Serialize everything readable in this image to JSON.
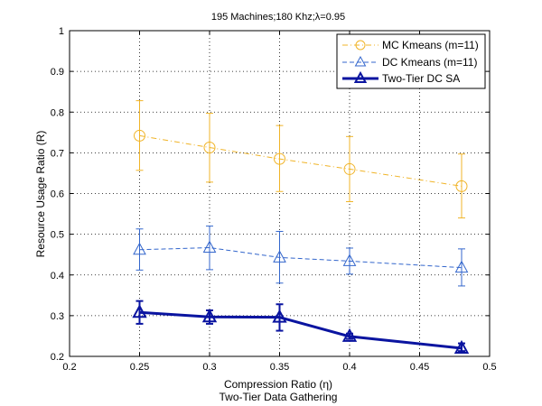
{
  "chart_data": {
    "type": "line",
    "title": "195 Machines;180 Khz;λ=0.95",
    "xlabel": "Compression Ratio (η)",
    "xlabel2": "Two-Tier Data Gathering",
    "ylabel": "Resource Usage Ratio (R)",
    "xlim": [
      0.2,
      0.5
    ],
    "ylim": [
      0.2,
      1.0
    ],
    "xticks": [
      0.2,
      0.25,
      0.3,
      0.35,
      0.4,
      0.45,
      0.5
    ],
    "xtick_labels": [
      "0.2",
      "0.25",
      "0.3",
      "0.35",
      "0.4",
      "0.45",
      "0.5"
    ],
    "yticks": [
      0.2,
      0.3,
      0.4,
      0.5,
      0.6,
      0.7,
      0.8,
      0.9,
      1.0
    ],
    "ytick_labels": [
      "0.2",
      "0.3",
      "0.4",
      "0.5",
      "0.6",
      "0.7",
      "0.8",
      "0.9",
      "1"
    ],
    "grid": true,
    "legend_position": "top-right",
    "series": [
      {
        "name": "MC Kmeans (m=11)",
        "color": "#f0b428",
        "line_style": "dash-dot",
        "marker": "circle",
        "x": [
          0.25,
          0.3,
          0.35,
          0.4,
          0.48
        ],
        "y": [
          0.742,
          0.713,
          0.685,
          0.66,
          0.618
        ],
        "err_low": [
          0.657,
          0.628,
          0.605,
          0.58,
          0.54
        ],
        "err_high": [
          0.828,
          0.797,
          0.767,
          0.74,
          0.697
        ]
      },
      {
        "name": "DC Kmeans (m=11)",
        "color": "#3366cc",
        "line_style": "dashed",
        "marker": "triangle",
        "x": [
          0.25,
          0.3,
          0.35,
          0.4,
          0.48
        ],
        "y": [
          0.462,
          0.467,
          0.443,
          0.434,
          0.418
        ],
        "err_low": [
          0.412,
          0.413,
          0.38,
          0.402,
          0.373
        ],
        "err_high": [
          0.513,
          0.52,
          0.507,
          0.466,
          0.464
        ]
      },
      {
        "name": "Two-Tier DC SA",
        "color": "#0a14a0",
        "line_style": "solid-bold",
        "marker": "triangle",
        "x": [
          0.25,
          0.3,
          0.35,
          0.4,
          0.48
        ],
        "y": [
          0.308,
          0.297,
          0.296,
          0.249,
          0.22
        ],
        "err_low": [
          0.28,
          0.28,
          0.263,
          0.243,
          0.213
        ],
        "err_high": [
          0.336,
          0.313,
          0.328,
          0.256,
          0.232
        ]
      }
    ]
  }
}
